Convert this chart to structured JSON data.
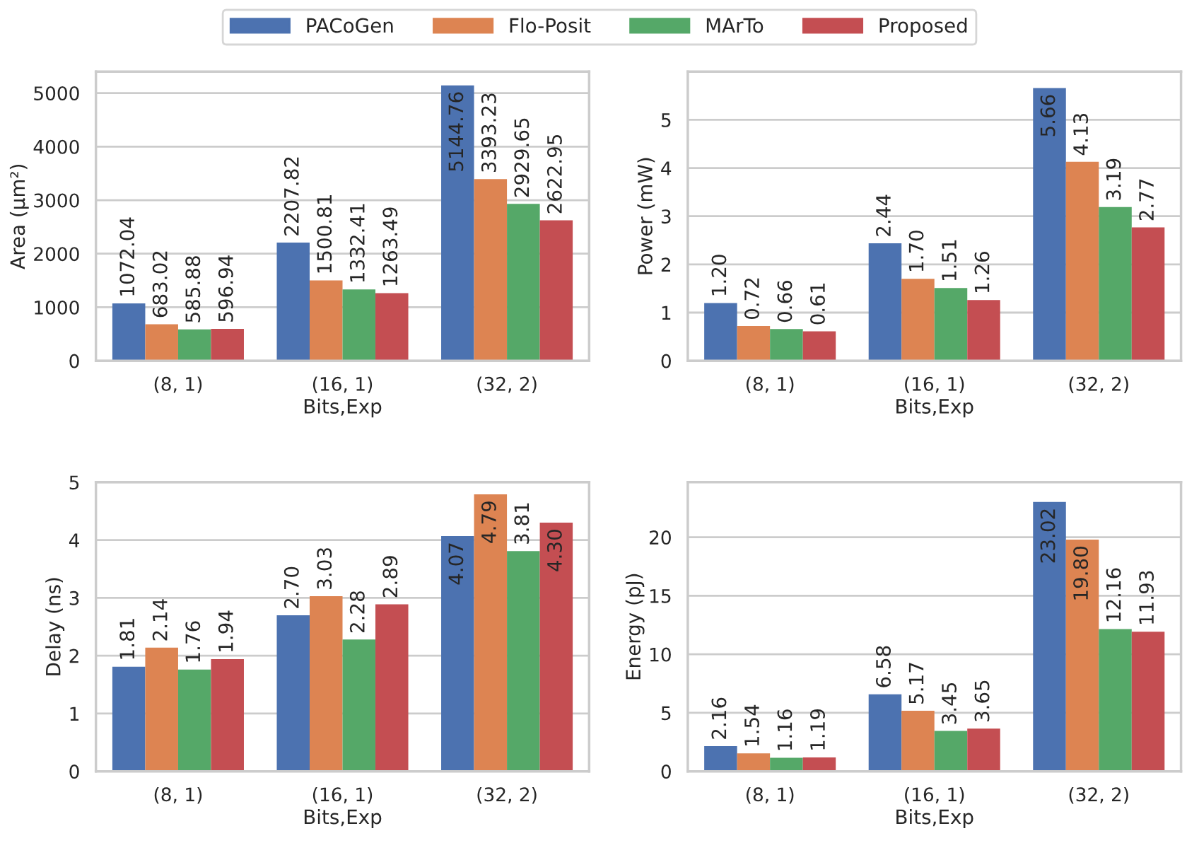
{
  "chart_data": [
    {
      "type": "bar",
      "ylabel": "Area (µm²)",
      "xlabel": "Bits,Exp",
      "categories": [
        "(8, 1)",
        "(16, 1)",
        "(32, 2)"
      ],
      "ylim": [
        0,
        5400
      ],
      "yticks": [
        0,
        1000,
        2000,
        3000,
        4000,
        5000
      ],
      "grid": "y",
      "legend": "top",
      "series": [
        {
          "name": "PACoGen",
          "color": "#4c72b0",
          "values": [
            1072.04,
            2207.82,
            5144.76
          ],
          "value_labels": [
            "1072.04",
            "2207.82",
            "5144.76"
          ]
        },
        {
          "name": "Flo-Posit",
          "color": "#dd8452",
          "values": [
            683.02,
            1500.81,
            3393.23
          ],
          "value_labels": [
            "683.02",
            "1500.81",
            "3393.23"
          ]
        },
        {
          "name": "MArTo",
          "color": "#55a868",
          "values": [
            585.88,
            1332.41,
            2929.65
          ],
          "value_labels": [
            "585.88",
            "1332.41",
            "2929.65"
          ]
        },
        {
          "name": "Proposed",
          "color": "#c44e52",
          "values": [
            596.94,
            1263.49,
            2622.95
          ],
          "value_labels": [
            "596.94",
            "1263.49",
            "2622.95"
          ]
        }
      ]
    },
    {
      "type": "bar",
      "ylabel": "Power (mW)",
      "xlabel": "Bits,Exp",
      "categories": [
        "(8, 1)",
        "(16, 1)",
        "(32, 2)"
      ],
      "ylim": [
        0,
        6.0
      ],
      "yticks": [
        0,
        1,
        2,
        3,
        4,
        5
      ],
      "grid": "y",
      "series": [
        {
          "color": "#4c72b0",
          "values": [
            1.2,
            2.44,
            5.66
          ],
          "value_labels": [
            "1.20",
            "2.44",
            "5.66"
          ]
        },
        {
          "color": "#dd8452",
          "values": [
            0.72,
            1.7,
            4.13
          ],
          "value_labels": [
            "0.72",
            "1.70",
            "4.13"
          ]
        },
        {
          "color": "#55a868",
          "values": [
            0.66,
            1.51,
            3.19
          ],
          "value_labels": [
            "0.66",
            "1.51",
            "3.19"
          ]
        },
        {
          "color": "#c44e52",
          "values": [
            0.61,
            1.26,
            2.77
          ],
          "value_labels": [
            "0.61",
            "1.26",
            "2.77"
          ]
        }
      ]
    },
    {
      "type": "bar",
      "ylabel": "Delay (ns)",
      "xlabel": "Bits,Exp",
      "categories": [
        "(8, 1)",
        "(16, 1)",
        "(32, 2)"
      ],
      "ylim": [
        0,
        5
      ],
      "yticks": [
        0,
        1,
        2,
        3,
        4,
        5
      ],
      "grid": "y",
      "series": [
        {
          "color": "#4c72b0",
          "values": [
            1.81,
            2.7,
            4.07
          ],
          "value_labels": [
            "1.81",
            "2.70",
            "4.07"
          ]
        },
        {
          "color": "#dd8452",
          "values": [
            2.14,
            3.03,
            4.79
          ],
          "value_labels": [
            "2.14",
            "3.03",
            "4.79"
          ]
        },
        {
          "color": "#55a868",
          "values": [
            1.76,
            2.28,
            3.81
          ],
          "value_labels": [
            "1.76",
            "2.28",
            "3.81"
          ]
        },
        {
          "color": "#c44e52",
          "values": [
            1.94,
            2.89,
            4.3
          ],
          "value_labels": [
            "1.94",
            "2.89",
            "4.30"
          ]
        }
      ]
    },
    {
      "type": "bar",
      "ylabel": "Energy (pJ)",
      "xlabel": "Bits,Exp",
      "categories": [
        "(8, 1)",
        "(16, 1)",
        "(32, 2)"
      ],
      "ylim": [
        0,
        24.7
      ],
      "yticks": [
        0,
        5,
        10,
        15,
        20
      ],
      "grid": "y",
      "series": [
        {
          "color": "#4c72b0",
          "values": [
            2.16,
            6.58,
            23.02
          ],
          "value_labels": [
            "2.16",
            "6.58",
            "23.02"
          ]
        },
        {
          "color": "#dd8452",
          "values": [
            1.54,
            5.17,
            19.8
          ],
          "value_labels": [
            "1.54",
            "5.17",
            "19.80"
          ]
        },
        {
          "color": "#55a868",
          "values": [
            1.16,
            3.45,
            12.16
          ],
          "value_labels": [
            "1.16",
            "3.45",
            "12.16"
          ]
        },
        {
          "color": "#c44e52",
          "values": [
            1.19,
            3.65,
            11.93
          ],
          "value_labels": [
            "1.19",
            "3.65",
            "11.93"
          ]
        }
      ]
    }
  ]
}
